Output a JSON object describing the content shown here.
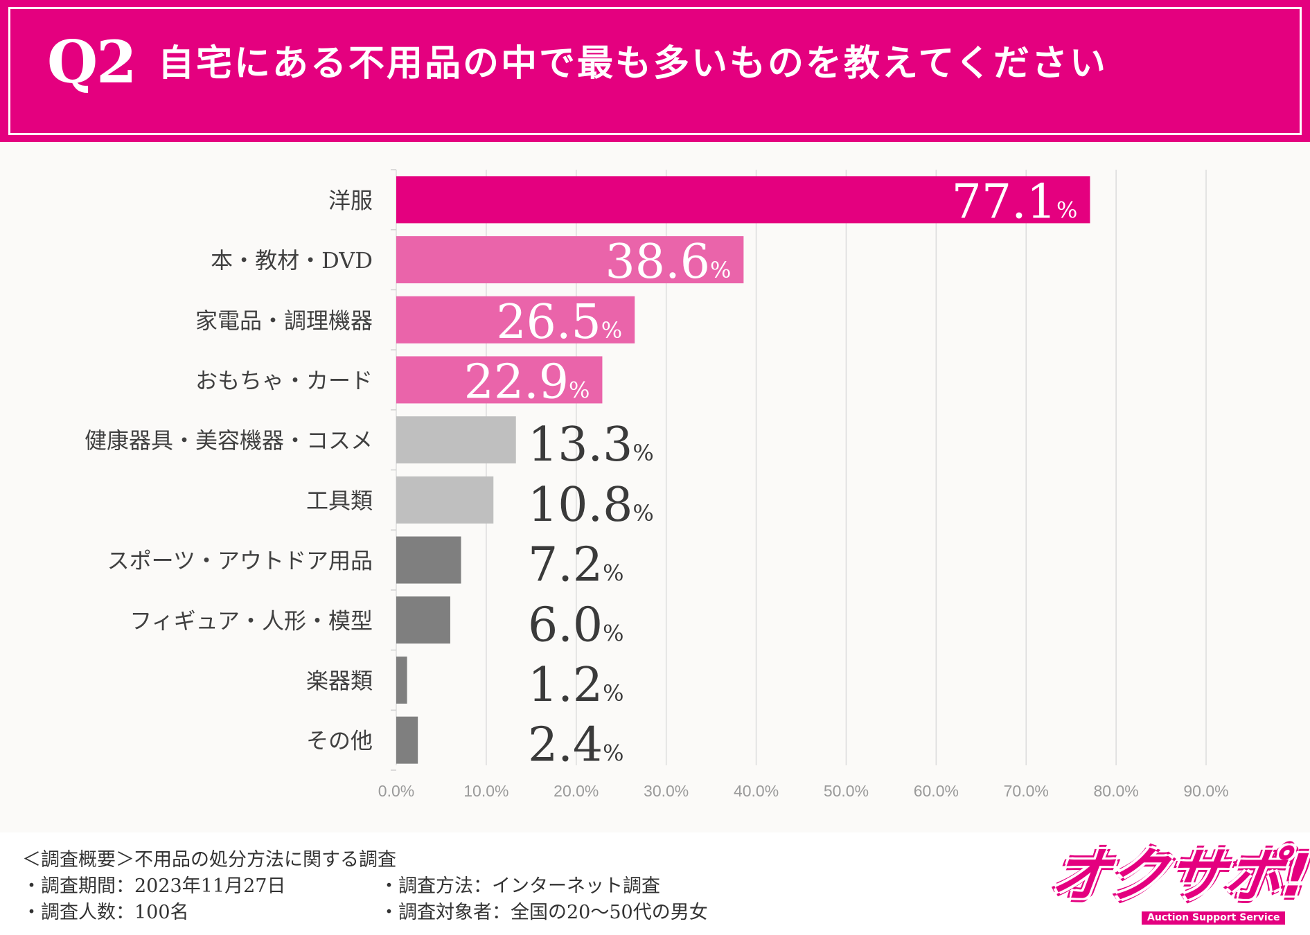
{
  "header": {
    "q_number": "Q2",
    "title": "自宅にある不用品の中で最も多いものを教えてください"
  },
  "chart_data": {
    "type": "bar",
    "orientation": "horizontal",
    "title": "自宅にある不用品の中で最も多いものを教えてください",
    "categories": [
      "洋服",
      "本・教材・DVD",
      "家電品・調理機器",
      "おもちゃ・カード",
      "健康器具・美容機器・コスメ",
      "工具類",
      "スポーツ・アウトドア用品",
      "フィギュア・人形・模型",
      "楽器類",
      "その他"
    ],
    "values": [
      77.1,
      38.6,
      26.5,
      22.9,
      13.3,
      10.8,
      7.2,
      6.0,
      1.2,
      2.4
    ],
    "value_labels": [
      "77.1",
      "38.6",
      "26.5",
      "22.9",
      "13.3",
      "10.8",
      "7.2",
      "6.0",
      "1.2",
      "2.4"
    ],
    "unit": "%",
    "bar_colors": [
      "#e4007f",
      "#ea64aa",
      "#ea64aa",
      "#ea64aa",
      "#bfbfbf",
      "#bfbfbf",
      "#7f7f7f",
      "#7f7f7f",
      "#7f7f7f",
      "#7f7f7f"
    ],
    "xlim": [
      0,
      90
    ],
    "xticks": [
      "0.0%",
      "10.0%",
      "20.0%",
      "30.0%",
      "40.0%",
      "50.0%",
      "60.0%",
      "70.0%",
      "80.0%",
      "90.0%"
    ],
    "xlabel": "",
    "ylabel": "",
    "grid": true
  },
  "footer": {
    "overview": "＜調査概要＞不用品の処分方法に関する調査",
    "period": "・調査期間：2023年11月27日",
    "count": "・調査人数：100名",
    "method": "・調査方法：インターネット調査",
    "target": "・調査対象者：全国の20〜50代の男女"
  },
  "logo": {
    "text": "オクサポ!",
    "subtitle": "Auction Support Service"
  }
}
